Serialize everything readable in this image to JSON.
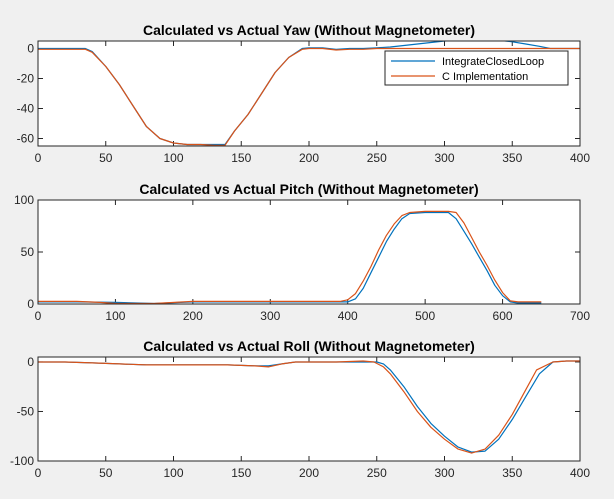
{
  "chart_data": [
    {
      "type": "line",
      "title": "Calculated vs Actual Yaw (Without Magnetometer)",
      "xlabel": "",
      "ylabel": "",
      "xlim": [
        0,
        400
      ],
      "ylim": [
        -65,
        5
      ],
      "xticks": [
        0,
        50,
        100,
        150,
        200,
        250,
        300,
        350,
        400
      ],
      "yticks": [
        -60,
        -40,
        -20,
        0
      ],
      "legend": {
        "placement": "top-right",
        "entries": [
          "IntegrateClosedLoop",
          "C Implementation"
        ]
      },
      "series": [
        {
          "name": "IntegrateClosedLoop",
          "color": "#0072BD",
          "x": [
            0,
            20,
            35,
            40,
            50,
            60,
            70,
            80,
            90,
            100,
            110,
            120,
            130,
            138,
            145,
            155,
            165,
            175,
            185,
            195,
            200,
            210,
            220,
            230,
            240,
            250,
            260,
            270,
            280,
            290,
            300,
            310,
            320,
            330,
            340,
            350,
            360,
            370,
            378,
            390,
            400
          ],
          "y": [
            0,
            0,
            0,
            -2,
            -12,
            -24,
            -38,
            -52,
            -60,
            -63,
            -64,
            -64,
            -64,
            -64,
            -55,
            -44,
            -30,
            -16,
            -6,
            0,
            0.5,
            0.5,
            -0.5,
            0,
            0,
            0.5,
            1,
            2,
            3,
            4,
            5,
            5.5,
            6,
            6,
            5.5,
            4.5,
            3,
            1.5,
            0,
            0,
            0
          ]
        },
        {
          "name": "C Implementation",
          "color": "#D95319",
          "x": [
            0,
            20,
            35,
            40,
            50,
            60,
            70,
            80,
            90,
            100,
            110,
            120,
            130,
            138,
            145,
            155,
            165,
            175,
            185,
            195,
            200,
            210,
            220,
            230,
            240,
            250,
            260,
            270,
            280,
            290,
            300,
            310,
            320,
            330,
            340,
            350,
            360,
            370,
            378,
            390,
            400
          ],
          "y": [
            -0.5,
            -0.5,
            -0.5,
            -2.5,
            -12,
            -24,
            -38,
            -52,
            -60,
            -63,
            -64,
            -64,
            -64.5,
            -64.5,
            -55,
            -44,
            -30,
            -16,
            -6,
            -0.5,
            0,
            0,
            -1,
            -0.5,
            -0.5,
            0,
            0,
            0,
            0,
            0,
            0,
            0,
            0,
            0,
            0,
            0,
            0,
            0,
            0,
            0,
            0
          ]
        }
      ]
    },
    {
      "type": "line",
      "title": "Calculated vs Actual Pitch (Without Magnetometer)",
      "xlabel": "",
      "ylabel": "",
      "xlim": [
        0,
        700
      ],
      "ylim": [
        0,
        100
      ],
      "xticks": [
        0,
        100,
        200,
        300,
        400,
        500,
        600,
        700
      ],
      "yticks": [
        0,
        50,
        100
      ],
      "series": [
        {
          "name": "IntegrateClosedLoop",
          "color": "#0072BD",
          "x": [
            0,
            50,
            100,
            150,
            200,
            300,
            390,
            400,
            410,
            420,
            430,
            440,
            450,
            460,
            470,
            480,
            500,
            520,
            530,
            540,
            550,
            560,
            570,
            580,
            590,
            600,
            610,
            620,
            650
          ],
          "y": [
            2,
            2,
            1.5,
            0.5,
            2,
            2,
            2,
            2,
            5,
            15,
            30,
            45,
            60,
            72,
            82,
            87,
            88,
            88,
            88,
            82,
            70,
            58,
            45,
            32,
            18,
            8,
            2,
            1,
            1
          ]
        },
        {
          "name": "C Implementation",
          "color": "#D95319",
          "x": [
            0,
            50,
            80,
            100,
            150,
            200,
            300,
            390,
            400,
            410,
            420,
            430,
            440,
            450,
            460,
            470,
            480,
            500,
            520,
            530,
            540,
            550,
            560,
            570,
            580,
            590,
            600,
            610,
            620,
            650
          ],
          "y": [
            2.5,
            2.5,
            1.5,
            0.5,
            0.5,
            2.5,
            2.5,
            2.5,
            4,
            10,
            22,
            36,
            52,
            66,
            77,
            85,
            88,
            89,
            89,
            89,
            88,
            78,
            64,
            50,
            37,
            23,
            11,
            3,
            2,
            2
          ]
        }
      ]
    },
    {
      "type": "line",
      "title": "Calculated vs Actual Roll (Without Magnetometer)",
      "xlabel": "",
      "ylabel": "",
      "xlim": [
        0,
        400
      ],
      "ylim": [
        -100,
        5
      ],
      "xticks": [
        0,
        50,
        100,
        150,
        200,
        250,
        300,
        350,
        400
      ],
      "yticks": [
        -100,
        -50,
        0
      ],
      "series": [
        {
          "name": "IntegrateClosedLoop",
          "color": "#0072BD",
          "x": [
            0,
            20,
            40,
            60,
            80,
            100,
            120,
            140,
            160,
            170,
            180,
            190,
            200,
            220,
            240,
            250,
            255,
            260,
            270,
            280,
            290,
            300,
            310,
            320,
            330,
            340,
            350,
            360,
            370,
            380,
            390,
            400
          ],
          "y": [
            0,
            0,
            -1,
            -2,
            -3,
            -3,
            -3,
            -3,
            -4,
            -4,
            -2,
            0,
            0,
            0,
            0,
            0,
            -2,
            -8,
            -25,
            -45,
            -62,
            -75,
            -86,
            -91,
            -90,
            -78,
            -58,
            -35,
            -12,
            0,
            1,
            1
          ]
        },
        {
          "name": "C Implementation",
          "color": "#D95319",
          "x": [
            0,
            20,
            40,
            60,
            80,
            100,
            120,
            140,
            160,
            170,
            180,
            190,
            200,
            220,
            240,
            248,
            255,
            260,
            270,
            280,
            290,
            300,
            310,
            320,
            330,
            340,
            350,
            360,
            368,
            380,
            390,
            400
          ],
          "y": [
            0,
            0,
            -1,
            -2,
            -3,
            -3,
            -3,
            -3,
            -4,
            -5,
            -2,
            0,
            0,
            0,
            1,
            0,
            -5,
            -12,
            -30,
            -50,
            -66,
            -78,
            -88,
            -92,
            -88,
            -74,
            -53,
            -28,
            -8,
            0,
            1,
            1
          ]
        }
      ]
    }
  ]
}
